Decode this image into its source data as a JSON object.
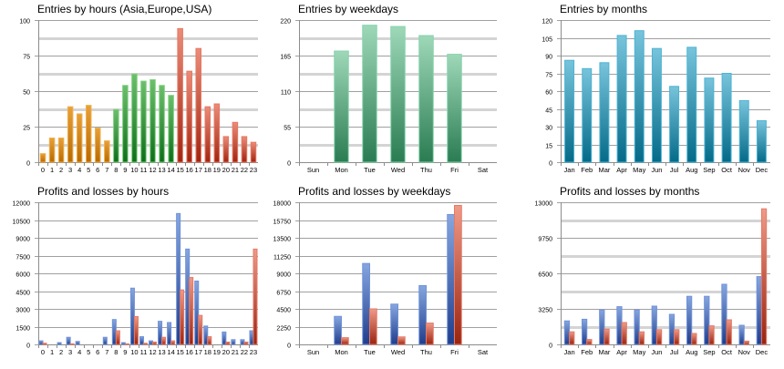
{
  "colors": {
    "grid_major": "#a0a0a0",
    "grid_minor": "#d4d4d4",
    "axis": "#8c8c8c",
    "tick_text": "#000000",
    "profit_top": "#86a6e0",
    "profit_bottom": "#1f3d8c",
    "profit_stroke": "#6f92d8",
    "loss_top": "#f09a88",
    "loss_bottom": "#9a2410",
    "loss_stroke": "#e27a66",
    "asia_top": "#e8a038",
    "asia_bottom": "#b86a00",
    "asia_stroke": "#f0b050",
    "europe_top": "#6cbf6c",
    "europe_bottom": "#0e6e1a",
    "europe_stroke": "#7ccf7c",
    "usa_top": "#ec8c78",
    "usa_bottom": "#a22410",
    "usa_stroke": "#e47864",
    "weekday_top": "#9ed8b8",
    "weekday_bottom": "#2a7c52",
    "weekday_stroke": "#86d4ac",
    "month_top": "#78c4dc",
    "month_bottom": "#046a88",
    "month_stroke": "#4cb4d4"
  },
  "chart_data": [
    {
      "id": "entries-hours",
      "type": "bar",
      "title": "Entries by hours (Asia,Europe,USA)",
      "xlabel": "",
      "ylabel": "",
      "ylim": [
        0,
        100
      ],
      "yticks": [
        0,
        25,
        50,
        75,
        100
      ],
      "minor_step": 12.5,
      "grid": true,
      "legend": "none",
      "categories": [
        "0",
        "1",
        "2",
        "3",
        "4",
        "5",
        "6",
        "7",
        "8",
        "9",
        "10",
        "11",
        "12",
        "13",
        "14",
        "15",
        "16",
        "17",
        "18",
        "19",
        "20",
        "21",
        "22",
        "23"
      ],
      "series": [
        {
          "name": "Entries",
          "values": [
            6,
            17,
            17,
            39,
            34,
            40,
            24,
            15,
            37,
            54,
            62,
            57,
            58,
            54,
            47,
            94,
            64,
            80,
            39,
            41,
            18,
            28,
            18,
            14
          ]
        }
      ],
      "regions": [
        "Asia",
        "Asia",
        "Asia",
        "Asia",
        "Asia",
        "Asia",
        "Asia",
        "Asia",
        "Europe",
        "Europe",
        "Europe",
        "Europe",
        "Europe",
        "Europe",
        "Europe",
        "USA",
        "USA",
        "USA",
        "USA",
        "USA",
        "USA",
        "USA",
        "USA",
        "USA"
      ]
    },
    {
      "id": "entries-weekdays",
      "type": "bar",
      "title": "Entries by weekdays",
      "xlabel": "",
      "ylabel": "",
      "ylim": [
        0,
        220
      ],
      "yticks": [
        0,
        55,
        110,
        165,
        220
      ],
      "minor_step": 27.5,
      "grid": true,
      "legend": "none",
      "categories": [
        "Sun",
        "Mon",
        "Tue",
        "Wed",
        "Thu",
        "Fri",
        "Sat"
      ],
      "series": [
        {
          "name": "Entries",
          "values": [
            0,
            172,
            212,
            210,
            196,
            167,
            0
          ]
        }
      ]
    },
    {
      "id": "entries-months",
      "type": "bar",
      "title": "Entries by months",
      "xlabel": "",
      "ylabel": "",
      "ylim": [
        0,
        120
      ],
      "yticks": [
        0,
        15,
        30,
        45,
        60,
        75,
        90,
        105,
        120
      ],
      "minor_step": 15,
      "grid": true,
      "legend": "none",
      "categories": [
        "Jan",
        "Feb",
        "Mar",
        "Apr",
        "May",
        "Jun",
        "Jul",
        "Aug",
        "Sep",
        "Oct",
        "Nov",
        "Dec"
      ],
      "series": [
        {
          "name": "Entries",
          "values": [
            86,
            79,
            84,
            107,
            111,
            96,
            64,
            97,
            71,
            75,
            52,
            35
          ]
        }
      ]
    },
    {
      "id": "pl-hours",
      "type": "bar",
      "title": "Profits and losses by hours",
      "xlabel": "",
      "ylabel": "",
      "ylim": [
        0,
        12000
      ],
      "yticks": [
        0,
        1500,
        3000,
        4500,
        6000,
        7500,
        9000,
        10500,
        12000
      ],
      "minor_step": 1500,
      "grid": true,
      "legend": "none",
      "categories": [
        "0",
        "1",
        "2",
        "3",
        "4",
        "5",
        "6",
        "7",
        "8",
        "9",
        "10",
        "11",
        "12",
        "13",
        "14",
        "15",
        "16",
        "17",
        "18",
        "19",
        "20",
        "21",
        "22",
        "23"
      ],
      "series": [
        {
          "name": "Profits",
          "values": [
            300,
            0,
            150,
            600,
            250,
            0,
            0,
            600,
            2100,
            150,
            4750,
            650,
            300,
            1950,
            1850,
            11050,
            8050,
            5350,
            1550,
            0,
            1050,
            400,
            400,
            1150
          ]
        },
        {
          "name": "Losses",
          "values": [
            100,
            0,
            0,
            50,
            0,
            0,
            0,
            0,
            1150,
            50,
            2350,
            100,
            200,
            600,
            300,
            4600,
            5650,
            2450,
            650,
            0,
            200,
            0,
            200,
            8050
          ]
        }
      ]
    },
    {
      "id": "pl-weekdays",
      "type": "bar",
      "title": "Profits and losses by weekdays",
      "xlabel": "",
      "ylabel": "",
      "ylim": [
        0,
        18000
      ],
      "yticks": [
        0,
        2250,
        4500,
        6750,
        9000,
        11250,
        13500,
        15750,
        18000
      ],
      "minor_step": 2250,
      "grid": true,
      "legend": "none",
      "categories": [
        "Sun",
        "Mon",
        "Tue",
        "Wed",
        "Thu",
        "Fri",
        "Sat"
      ],
      "series": [
        {
          "name": "Profits",
          "values": [
            0,
            3550,
            10250,
            5100,
            7450,
            16450,
            0
          ]
        },
        {
          "name": "Losses",
          "values": [
            0,
            850,
            4500,
            950,
            2700,
            17600,
            0
          ]
        }
      ]
    },
    {
      "id": "pl-months",
      "type": "bar",
      "title": "Profits and losses by months",
      "xlabel": "",
      "ylabel": "",
      "ylim": [
        0,
        13000
      ],
      "yticks": [
        0,
        3250,
        6500,
        9750,
        13000
      ],
      "minor_step": 1625,
      "grid": true,
      "legend": "none",
      "categories": [
        "Jan",
        "Feb",
        "Mar",
        "Apr",
        "May",
        "Jun",
        "Jul",
        "Aug",
        "Sep",
        "Oct",
        "Nov",
        "Dec"
      ],
      "series": [
        {
          "name": "Profits",
          "values": [
            2150,
            2300,
            3150,
            3450,
            3150,
            3500,
            2750,
            4400,
            4400,
            5500,
            1750,
            6200
          ]
        },
        {
          "name": "Losses",
          "values": [
            1150,
            450,
            1400,
            2000,
            1150,
            1350,
            1350,
            1000,
            1700,
            2250,
            300,
            12400
          ]
        }
      ]
    }
  ]
}
